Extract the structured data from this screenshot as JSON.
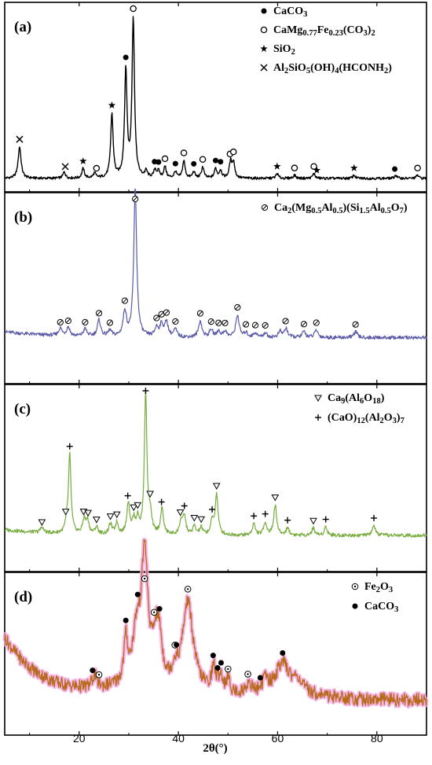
{
  "chart_data": {
    "type": "line",
    "x_axis": {
      "label": "2θ(°)",
      "range": [
        5,
        90
      ],
      "ticks": [
        20,
        40,
        60,
        80
      ]
    },
    "grid": false,
    "panels": [
      {
        "id": "a",
        "label": "(a)",
        "color": "#000000",
        "noise": 0.8,
        "baseline": 0.03,
        "peaks": [
          [
            8,
            20,
            0.35
          ],
          [
            17,
            4,
            0.3
          ],
          [
            20.8,
            6,
            0.3
          ],
          [
            23.1,
            3,
            0.3
          ],
          [
            26.6,
            40,
            0.3
          ],
          [
            29.4,
            67,
            0.3
          ],
          [
            30.9,
            100,
            0.3
          ],
          [
            33.5,
            4,
            0.3
          ],
          [
            35.3,
            5,
            0.3
          ],
          [
            36.0,
            4,
            0.3
          ],
          [
            37.3,
            7,
            0.3
          ],
          [
            39.4,
            4,
            0.3
          ],
          [
            41.1,
            11,
            0.3
          ],
          [
            43.1,
            4,
            0.3
          ],
          [
            44.9,
            7,
            0.3
          ],
          [
            47.5,
            6,
            0.3
          ],
          [
            48.5,
            5,
            0.3
          ],
          [
            50.5,
            10,
            0.3
          ],
          [
            51.1,
            10,
            0.3
          ],
          [
            59.9,
            3,
            0.3
          ],
          [
            63.4,
            2,
            0.3
          ],
          [
            67.3,
            3,
            0.3
          ],
          [
            75.4,
            2,
            0.3
          ],
          [
            83.8,
            2,
            0.3
          ],
          [
            88.2,
            2,
            0.3
          ]
        ],
        "legend": [
          {
            "marker": "filled-circle",
            "parts": [
              {
                "t": "CaCO"
              },
              {
                "t": "3",
                "sub": true
              }
            ]
          },
          {
            "marker": "open-circle",
            "parts": [
              {
                "t": "CaMg"
              },
              {
                "t": "0.77",
                "sub": true
              },
              {
                "t": "Fe"
              },
              {
                "t": "0.23",
                "sub": true
              },
              {
                "t": "(CO"
              },
              {
                "t": "3",
                "sub": true
              },
              {
                "t": ")"
              },
              {
                "t": "2",
                "sub": true
              }
            ]
          },
          {
            "marker": "star",
            "parts": [
              {
                "t": "SiO"
              },
              {
                "t": "2",
                "sub": true
              }
            ]
          },
          {
            "marker": "cross",
            "parts": [
              {
                "t": "Al"
              },
              {
                "t": "2",
                "sub": true
              },
              {
                "t": "SiO"
              },
              {
                "t": "5",
                "sub": true
              },
              {
                "t": "(OH)"
              },
              {
                "t": "4",
                "sub": true
              },
              {
                "t": "(HCONH"
              },
              {
                "t": "2",
                "sub": true
              },
              {
                "t": ")"
              }
            ]
          }
        ],
        "markers": [
          [
            8,
            "cross"
          ],
          [
            17.2,
            "cross"
          ],
          [
            20.8,
            "star"
          ],
          [
            26.6,
            "star"
          ],
          [
            23.5,
            "open-circle"
          ],
          [
            29.4,
            "filled-circle"
          ],
          [
            30.9,
            "open-circle"
          ],
          [
            35.2,
            "filled-circle"
          ],
          [
            36.0,
            "filled-circle"
          ],
          [
            37.3,
            "open-circle"
          ],
          [
            39.4,
            "filled-circle"
          ],
          [
            41.1,
            "open-circle"
          ],
          [
            43.1,
            "filled-circle"
          ],
          [
            44.9,
            "open-circle"
          ],
          [
            47.5,
            "filled-circle"
          ],
          [
            48.5,
            "filled-circle"
          ],
          [
            50.4,
            "open-circle"
          ],
          [
            51.1,
            "open-circle"
          ],
          [
            59.9,
            "star"
          ],
          [
            63.4,
            "open-circle"
          ],
          [
            67.3,
            "open-circle"
          ],
          [
            67.9,
            "star"
          ],
          [
            75.4,
            "star"
          ],
          [
            83.6,
            "filled-circle"
          ],
          [
            88.2,
            "open-circle"
          ]
        ]
      },
      {
        "id": "b",
        "label": "(b)",
        "color": "#5a5aa8",
        "noise": 1.2,
        "baseline": 0.04,
        "peaks": [
          [
            16.2,
            5,
            0.4
          ],
          [
            17.8,
            6,
            0.4
          ],
          [
            21.2,
            5,
            0.4
          ],
          [
            24.0,
            11,
            0.4
          ],
          [
            26.2,
            4,
            0.4
          ],
          [
            29.2,
            17,
            0.4
          ],
          [
            31.3,
            100,
            0.35
          ],
          [
            35.6,
            6,
            0.4
          ],
          [
            36.6,
            8,
            0.4
          ],
          [
            37.6,
            10,
            0.4
          ],
          [
            39.4,
            5,
            0.4
          ],
          [
            44.4,
            11,
            0.4
          ],
          [
            46.6,
            5,
            0.4
          ],
          [
            48.1,
            4,
            0.4
          ],
          [
            49.4,
            4,
            0.4
          ],
          [
            51.9,
            15,
            0.4
          ],
          [
            53.6,
            3,
            0.4
          ],
          [
            55.5,
            3,
            0.4
          ],
          [
            57.5,
            3,
            0.4
          ],
          [
            60.5,
            4,
            0.4
          ],
          [
            61.7,
            6,
            0.4
          ],
          [
            65.3,
            4,
            0.4
          ],
          [
            67.8,
            5,
            0.4
          ],
          [
            75.7,
            4,
            0.4
          ]
        ],
        "legend": [
          {
            "marker": "slash-circle",
            "parts": [
              {
                "t": "Ca"
              },
              {
                "t": "2",
                "sub": true
              },
              {
                "t": "(Mg"
              },
              {
                "t": "0.5",
                "sub": true
              },
              {
                "t": "Al"
              },
              {
                "t": "0.5",
                "sub": true
              },
              {
                "t": ")(Si"
              },
              {
                "t": "1.5",
                "sub": true
              },
              {
                "t": "Al"
              },
              {
                "t": "0.5",
                "sub": true
              },
              {
                "t": "O"
              },
              {
                "t": "7",
                "sub": true
              },
              {
                "t": ")"
              }
            ]
          }
        ],
        "markers": [
          [
            16.2,
            "slash-circle"
          ],
          [
            17.8,
            "slash-circle"
          ],
          [
            21.2,
            "slash-circle"
          ],
          [
            24.0,
            "slash-circle"
          ],
          [
            26.2,
            "slash-circle"
          ],
          [
            29.2,
            "slash-circle"
          ],
          [
            31.3,
            "slash-circle"
          ],
          [
            35.6,
            "slash-circle"
          ],
          [
            36.6,
            "slash-circle"
          ],
          [
            37.6,
            "slash-circle"
          ],
          [
            39.4,
            "slash-circle"
          ],
          [
            44.4,
            "slash-circle"
          ],
          [
            46.6,
            "slash-circle"
          ],
          [
            48.1,
            "slash-circle"
          ],
          [
            49.4,
            "slash-circle"
          ],
          [
            51.9,
            "slash-circle"
          ],
          [
            53.6,
            "slash-circle"
          ],
          [
            55.5,
            "slash-circle"
          ],
          [
            57.5,
            "slash-circle"
          ],
          [
            61.6,
            "slash-circle"
          ],
          [
            65.3,
            "slash-circle"
          ],
          [
            67.8,
            "slash-circle"
          ],
          [
            75.7,
            "slash-circle"
          ]
        ]
      },
      {
        "id": "c",
        "label": "(c)",
        "color": "#77ac3e",
        "noise": 1.3,
        "baseline": 0.05,
        "peaks": [
          [
            12.5,
            4,
            0.35
          ],
          [
            17.5,
            6,
            0.35
          ],
          [
            18.1,
            55,
            0.3
          ],
          [
            21.0,
            10,
            0.35
          ],
          [
            21.7,
            9,
            0.35
          ],
          [
            23.5,
            5,
            0.35
          ],
          [
            26.3,
            7,
            0.35
          ],
          [
            27.6,
            8,
            0.35
          ],
          [
            29.9,
            22,
            0.35
          ],
          [
            31.0,
            9,
            0.35
          ],
          [
            31.8,
            10,
            0.35
          ],
          [
            33.4,
            100,
            0.3
          ],
          [
            34.3,
            13,
            0.35
          ],
          [
            36.7,
            18,
            0.35
          ],
          [
            40.5,
            9,
            0.35
          ],
          [
            41.2,
            13,
            0.35
          ],
          [
            43.2,
            6,
            0.35
          ],
          [
            44.6,
            5,
            0.35
          ],
          [
            46.8,
            9,
            0.35
          ],
          [
            47.7,
            28,
            0.35
          ],
          [
            55.2,
            8,
            0.35
          ],
          [
            57.5,
            9,
            0.35
          ],
          [
            59.5,
            21,
            0.35
          ],
          [
            62.0,
            5,
            0.35
          ],
          [
            67.2,
            5,
            0.35
          ],
          [
            69.7,
            6,
            0.35
          ],
          [
            79.4,
            7,
            0.35
          ]
        ],
        "legend": [
          {
            "marker": "triangle",
            "parts": [
              {
                "t": "Ca"
              },
              {
                "t": "9",
                "sub": true
              },
              {
                "t": "(Al"
              },
              {
                "t": "6",
                "sub": true
              },
              {
                "t": "O"
              },
              {
                "t": "18",
                "sub": true
              },
              {
                "t": ")"
              }
            ]
          },
          {
            "marker": "plus",
            "parts": [
              {
                "t": "(CaO)"
              },
              {
                "t": "12",
                "sub": true
              },
              {
                "t": "(Al"
              },
              {
                "t": "2",
                "sub": true
              },
              {
                "t": "O"
              },
              {
                "t": "3",
                "sub": true
              },
              {
                "t": ")"
              },
              {
                "t": "7",
                "sub": true
              }
            ]
          }
        ],
        "markers": [
          [
            12.5,
            "triangle"
          ],
          [
            17.3,
            "triangle"
          ],
          [
            18.1,
            "plus"
          ],
          [
            20.9,
            "triangle"
          ],
          [
            21.8,
            "triangle"
          ],
          [
            23.5,
            "triangle"
          ],
          [
            26.3,
            "triangle"
          ],
          [
            27.6,
            "triangle"
          ],
          [
            29.8,
            "plus"
          ],
          [
            31.0,
            "triangle"
          ],
          [
            31.8,
            "triangle"
          ],
          [
            33.4,
            "plus"
          ],
          [
            34.3,
            "triangle"
          ],
          [
            36.6,
            "plus"
          ],
          [
            40.4,
            "triangle"
          ],
          [
            41.2,
            "plus"
          ],
          [
            43.2,
            "triangle"
          ],
          [
            44.6,
            "triangle"
          ],
          [
            46.8,
            "plus"
          ],
          [
            47.7,
            "triangle"
          ],
          [
            55.2,
            "plus"
          ],
          [
            57.5,
            "plus"
          ],
          [
            59.5,
            "triangle"
          ],
          [
            62.0,
            "plus"
          ],
          [
            67.2,
            "triangle"
          ],
          [
            69.7,
            "plus"
          ],
          [
            79.4,
            "plus"
          ]
        ]
      },
      {
        "id": "d",
        "label": "(d)",
        "color": "#b86a1c",
        "halo": "#f4a8e2",
        "noise": 2.0,
        "baseline": 0.14,
        "peaks": [
          [
            23.1,
            6,
            0.5
          ],
          [
            29.4,
            20,
            0.45
          ],
          [
            31.6,
            24,
            1.0
          ],
          [
            33.2,
            60,
            0.75
          ],
          [
            35.6,
            24,
            0.9
          ],
          [
            36.3,
            10,
            0.5
          ],
          [
            39.3,
            6,
            0.6
          ],
          [
            41.9,
            42,
            1.3
          ],
          [
            47.1,
            11,
            0.5
          ],
          [
            48.5,
            8,
            0.5
          ],
          [
            50.0,
            6,
            0.5
          ],
          [
            54.2,
            5,
            0.6
          ],
          [
            57.5,
            6,
            0.6
          ],
          [
            61.0,
            14,
            1.7
          ],
          [
            64.0,
            5,
            1.0
          ]
        ],
        "legend": [
          {
            "marker": "dot-circle",
            "parts": [
              {
                "t": "Fe"
              },
              {
                "t": "2",
                "sub": true
              },
              {
                "t": "O"
              },
              {
                "t": "3",
                "sub": true
              }
            ]
          },
          {
            "marker": "filled-circle",
            "parts": [
              {
                "t": "CaCO"
              },
              {
                "t": "3",
                "sub": true
              }
            ]
          }
        ],
        "markers": [
          [
            22.7,
            "filled-circle"
          ],
          [
            24.0,
            "dot-circle"
          ],
          [
            29.4,
            "filled-circle"
          ],
          [
            31.8,
            "filled-circle"
          ],
          [
            33.2,
            "dot-circle"
          ],
          [
            35.1,
            "dot-circle"
          ],
          [
            36.2,
            "filled-circle"
          ],
          [
            39.3,
            "dot-circle"
          ],
          [
            39.6,
            "filled-circle"
          ],
          [
            41.9,
            "dot-circle"
          ],
          [
            47.0,
            "filled-circle"
          ],
          [
            47.9,
            "filled-circle"
          ],
          [
            48.6,
            "filled-circle"
          ],
          [
            50.0,
            "dot-circle"
          ],
          [
            54.0,
            "dot-circle"
          ],
          [
            56.5,
            "filled-circle"
          ],
          [
            61.0,
            "filled-circle"
          ]
        ]
      }
    ]
  }
}
